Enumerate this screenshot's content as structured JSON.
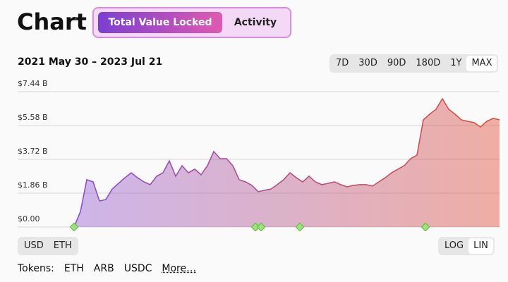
{
  "header": {
    "title": "Chart",
    "tabs": [
      "Total Value Locked",
      "Activity"
    ]
  },
  "range_buttons": [
    "7D",
    "30D",
    "90D",
    "180D",
    "1Y",
    "MAX"
  ],
  "currency_buttons": [
    "USD",
    "ETH"
  ],
  "scale_buttons": [
    "LOG",
    "LIN"
  ],
  "tokens": {
    "label": "Tokens:",
    "items": [
      "ETH",
      "ARB",
      "USDC",
      "More…"
    ]
  },
  "chart_data": {
    "type": "area",
    "subtitle": "2021 May 30 – 2023 Jul 21",
    "values": [
      0,
      0.85,
      2.6,
      2.48,
      1.43,
      1.51,
      2.09,
      2.4,
      2.71,
      2.98,
      2.71,
      2.48,
      2.33,
      2.79,
      2.98,
      3.64,
      2.79,
      3.37,
      2.98,
      3.18,
      2.87,
      3.37,
      4.15,
      3.76,
      3.76,
      3.37,
      2.6,
      2.48,
      2.29,
      1.94,
      2.02,
      2.09,
      2.33,
      2.6,
      2.98,
      2.71,
      2.48,
      2.79,
      2.48,
      2.33,
      2.4,
      2.48,
      2.33,
      2.21,
      2.29,
      2.33,
      2.33,
      2.25,
      2.48,
      2.71,
      2.98,
      3.18,
      3.37,
      3.76,
      3.95,
      5.89,
      6.2,
      6.47,
      7.05,
      6.47,
      6.2,
      5.89,
      5.81,
      5.74,
      5.5,
      5.81,
      5.97,
      5.89
    ],
    "colors": [
      "#8a4fd0",
      "#e0503a"
    ],
    "ylim": [
      0,
      7.44
    ],
    "yticks": [
      {
        "value": 0,
        "label": "$0.00"
      },
      {
        "value": 1.86,
        "label": "$1.86 B"
      },
      {
        "value": 3.72,
        "label": "$3.72 B"
      },
      {
        "value": 5.58,
        "label": "$5.58 B"
      },
      {
        "value": 7.44,
        "label": "$7.44 B"
      }
    ],
    "grid": true
  }
}
